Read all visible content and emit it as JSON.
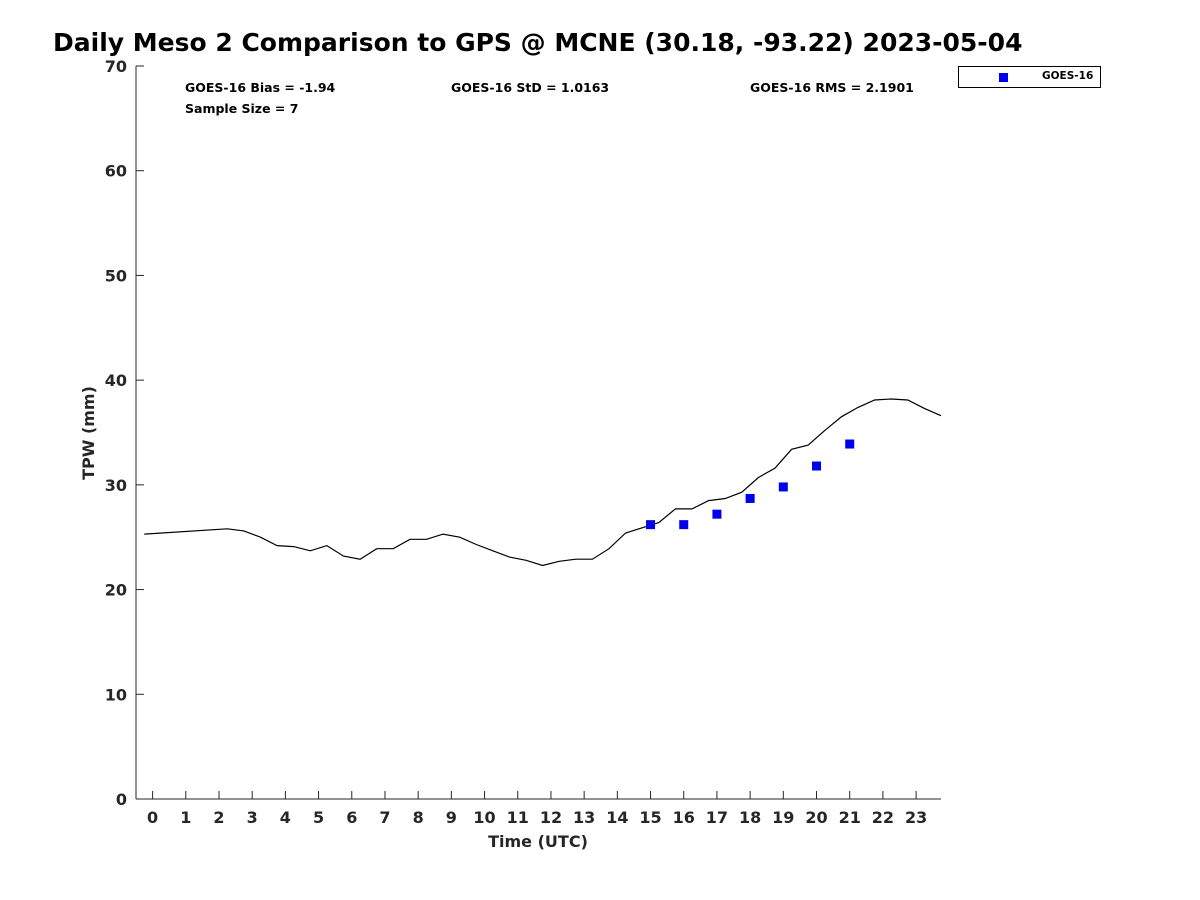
{
  "chart_data": {
    "type": "line",
    "title": "Daily Meso 2 Comparison to GPS @ MCNE (30.18, -93.22) 2023-05-04",
    "xlabel": "Time (UTC)",
    "ylabel": "TPW (mm)",
    "xlim": [
      -0.5,
      23.75
    ],
    "ylim": [
      0,
      70
    ],
    "x_ticks": [
      0,
      1,
      2,
      3,
      4,
      5,
      6,
      7,
      8,
      9,
      10,
      11,
      12,
      13,
      14,
      15,
      16,
      17,
      18,
      19,
      20,
      21,
      22,
      23
    ],
    "x_tick_labels": [
      "0",
      "1",
      "2",
      "3",
      "4",
      "5",
      "6",
      "7",
      "8",
      "9",
      "10",
      "11",
      "12",
      "13",
      "14",
      "15",
      "16",
      "17",
      "18",
      "19",
      "20",
      "21",
      "22",
      "23"
    ],
    "y_ticks": [
      0,
      10,
      20,
      30,
      40,
      50,
      60,
      70
    ],
    "y_tick_labels": [
      "0",
      "10",
      "20",
      "30",
      "40",
      "50",
      "60",
      "70"
    ],
    "grid": false,
    "legend_position": "outside top-right",
    "stats": {
      "bias": "GOES-16 Bias = -1.94",
      "std": "GOES-16 StD = 1.0163",
      "rms": "GOES-16 RMS = 2.1901",
      "sample": "Sample Size = 7"
    },
    "series": [
      {
        "style": "line",
        "color": "#000000",
        "x": [
          -0.25,
          2.25,
          2.75,
          3.25,
          3.75,
          4.25,
          4.75,
          5.25,
          5.75,
          6.25,
          6.75,
          7.25,
          7.75,
          8.25,
          8.75,
          9.25,
          9.75,
          10.25,
          10.75,
          11.25,
          11.75,
          12.25,
          12.75,
          13.25,
          13.75,
          14.25,
          14.75,
          15.25,
          15.75,
          16.25,
          16.75,
          17.25,
          17.75,
          18.25,
          18.75,
          19.25,
          19.75,
          20.25,
          20.75,
          21.25,
          21.75,
          22.25,
          22.75,
          23.25,
          23.75
        ],
        "y": [
          25.3,
          25.8,
          25.6,
          25.0,
          24.2,
          24.1,
          23.7,
          24.2,
          23.2,
          22.9,
          23.9,
          23.9,
          24.8,
          24.8,
          25.3,
          25.0,
          24.3,
          23.7,
          23.1,
          22.8,
          22.3,
          22.7,
          22.9,
          22.9,
          23.9,
          25.4,
          25.9,
          26.4,
          27.7,
          27.7,
          28.5,
          28.7,
          29.3,
          30.7,
          31.6,
          33.4,
          33.8,
          35.2,
          36.5,
          37.4,
          38.1,
          38.2,
          38.1,
          37.3,
          36.6
        ]
      },
      {
        "name": "GOES-16",
        "style": "square",
        "color": "#0000ee",
        "x": [
          15,
          16,
          17,
          18,
          19,
          20,
          21
        ],
        "y": [
          26.2,
          26.2,
          27.2,
          28.7,
          29.8,
          31.8,
          33.9
        ]
      }
    ]
  }
}
